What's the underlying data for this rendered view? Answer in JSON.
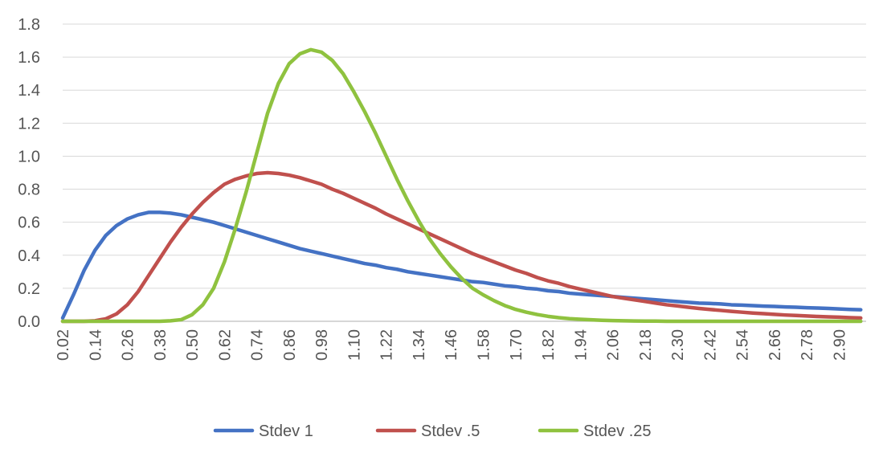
{
  "chart_data": {
    "type": "line",
    "title": "",
    "xlabel": "",
    "ylabel": "",
    "ylim": [
      0,
      1.8
    ],
    "xlim": [
      0.02,
      3.0
    ],
    "y_ticks": [
      "0.0",
      "0.2",
      "0.4",
      "0.6",
      "0.8",
      "1.0",
      "1.2",
      "1.4",
      "1.6",
      "1.8"
    ],
    "x_ticks": [
      "0.02",
      "0.14",
      "0.26",
      "0.38",
      "0.50",
      "0.62",
      "0.74",
      "0.86",
      "0.98",
      "1.10",
      "1.22",
      "1.34",
      "1.46",
      "1.58",
      "1.70",
      "1.82",
      "1.94",
      "2.06",
      "2.18",
      "2.30",
      "2.42",
      "2.54",
      "2.66",
      "2.78",
      "2.90"
    ],
    "grid": true,
    "legend": "bottom",
    "x": [
      0.02,
      0.06,
      0.1,
      0.14,
      0.18,
      0.22,
      0.26,
      0.3,
      0.34,
      0.38,
      0.42,
      0.46,
      0.5,
      0.54,
      0.58,
      0.62,
      0.66,
      0.7,
      0.74,
      0.78,
      0.82,
      0.86,
      0.9,
      0.94,
      0.98,
      1.02,
      1.06,
      1.1,
      1.14,
      1.18,
      1.22,
      1.26,
      1.3,
      1.34,
      1.38,
      1.42,
      1.46,
      1.5,
      1.54,
      1.58,
      1.62,
      1.66,
      1.7,
      1.74,
      1.78,
      1.82,
      1.86,
      1.9,
      1.94,
      1.98,
      2.02,
      2.06,
      2.1,
      2.14,
      2.18,
      2.22,
      2.26,
      2.3,
      2.34,
      2.38,
      2.42,
      2.46,
      2.5,
      2.54,
      2.58,
      2.62,
      2.66,
      2.7,
      2.74,
      2.78,
      2.82,
      2.86,
      2.9,
      2.94,
      2.98
    ],
    "series": [
      {
        "name": "Stdev 1",
        "color": "#4472C4",
        "values": [
          0.02,
          0.16,
          0.31,
          0.43,
          0.52,
          0.58,
          0.62,
          0.645,
          0.66,
          0.66,
          0.655,
          0.645,
          0.63,
          0.615,
          0.6,
          0.58,
          0.56,
          0.54,
          0.52,
          0.5,
          0.48,
          0.46,
          0.44,
          0.425,
          0.41,
          0.395,
          0.38,
          0.365,
          0.35,
          0.34,
          0.325,
          0.315,
          0.3,
          0.29,
          0.28,
          0.27,
          0.26,
          0.25,
          0.24,
          0.235,
          0.225,
          0.215,
          0.21,
          0.2,
          0.195,
          0.185,
          0.18,
          0.17,
          0.165,
          0.16,
          0.155,
          0.15,
          0.145,
          0.14,
          0.135,
          0.13,
          0.125,
          0.12,
          0.115,
          0.11,
          0.108,
          0.105,
          0.1,
          0.098,
          0.095,
          0.092,
          0.09,
          0.087,
          0.085,
          0.082,
          0.08,
          0.078,
          0.075,
          0.072,
          0.07
        ]
      },
      {
        "name": "Stdev .5",
        "color": "#C0504D",
        "values": [
          0.0,
          0.0,
          0.0,
          0.003,
          0.015,
          0.045,
          0.1,
          0.18,
          0.28,
          0.38,
          0.48,
          0.57,
          0.65,
          0.72,
          0.78,
          0.83,
          0.86,
          0.88,
          0.895,
          0.9,
          0.895,
          0.885,
          0.87,
          0.85,
          0.83,
          0.8,
          0.775,
          0.745,
          0.715,
          0.685,
          0.65,
          0.62,
          0.59,
          0.56,
          0.53,
          0.5,
          0.47,
          0.44,
          0.41,
          0.385,
          0.36,
          0.335,
          0.31,
          0.29,
          0.265,
          0.245,
          0.23,
          0.21,
          0.195,
          0.18,
          0.165,
          0.15,
          0.14,
          0.13,
          0.12,
          0.11,
          0.1,
          0.093,
          0.085,
          0.078,
          0.072,
          0.066,
          0.06,
          0.055,
          0.05,
          0.046,
          0.042,
          0.038,
          0.035,
          0.032,
          0.029,
          0.027,
          0.025,
          0.022,
          0.02
        ]
      },
      {
        "name": "Stdev .25",
        "color": "#8FC23F",
        "values": [
          0.0,
          0.0,
          0.0,
          0.0,
          0.0,
          0.0,
          0.0,
          0.0,
          0.0,
          0.0,
          0.003,
          0.01,
          0.04,
          0.1,
          0.2,
          0.36,
          0.56,
          0.78,
          1.02,
          1.26,
          1.44,
          1.56,
          1.62,
          1.645,
          1.63,
          1.58,
          1.5,
          1.39,
          1.27,
          1.14,
          1.0,
          0.86,
          0.73,
          0.61,
          0.5,
          0.41,
          0.33,
          0.26,
          0.2,
          0.16,
          0.125,
          0.095,
          0.072,
          0.055,
          0.041,
          0.03,
          0.022,
          0.016,
          0.012,
          0.009,
          0.006,
          0.004,
          0.003,
          0.002,
          0.0015,
          0.001,
          0.0,
          0.0,
          0.0,
          0.0,
          0.0,
          0.0,
          0.0,
          0.0,
          0.0,
          0.0,
          0.0,
          0.0,
          0.0,
          0.0,
          0.0,
          0.0,
          0.0,
          0.0,
          0.0
        ]
      }
    ]
  }
}
